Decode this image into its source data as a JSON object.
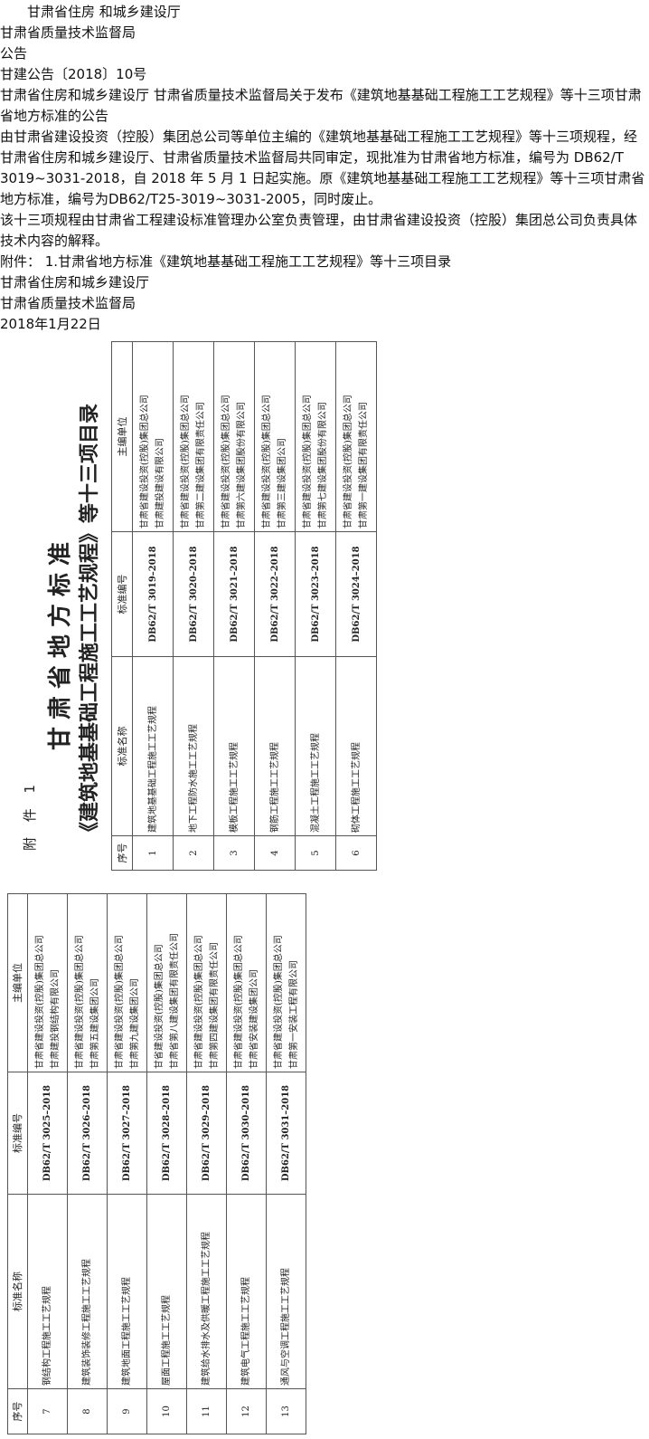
{
  "notice": {
    "issuer_line": "甘肃省住房 和城乡建设厅",
    "issuer2": "甘肃省质量技术监督局",
    "type": "公告",
    "doc_number": "甘建公告〔2018〕10号",
    "title": "甘肃省住房和城乡建设厅 甘肃省质量技术监督局关于发布《建筑地基基础工程施工工艺规程》等十三项甘肃省地方标准的公告",
    "para1": "由甘肃省建设投资（控股）集团总公司等单位主编的《建筑地基基础工程施工工艺规程》等十三项规程，经甘肃省住房和城乡建设厅、甘肃省质量技术监督局共同审定，现批准为甘肃省地方标准，编号为 DB62/T 3019~3031-2018，自 2018 年 5 月 1 日起实施。原《建筑地基基础工程施工工艺规程》等十三项甘肃省地方标准，编号为DB62/T25-3019~3031-2005，同时废止。",
    "para2": "该十三项规程由甘肃省工程建设标准管理办公室负责管理，由甘肃省建设投资（控股）集团总公司负责具体技术内容的解释。",
    "attachment": "附件： 1.甘肃省地方标准《建筑地基基础工程施工工艺规程》等十三项目录",
    "sign1": "甘肃省住房和城乡建设厅",
    "sign2": "甘肃省质量技术监督局",
    "date": "2018年1月22日"
  },
  "appendix": {
    "label": "附 件 1",
    "title_line1": "甘肃省地方标准",
    "title_line2": "《建筑地基基础工程施工工艺规程》等十三项目录",
    "headers": [
      "序号",
      "标准名称",
      "标准编号",
      "主编单位"
    ],
    "rows": [
      {
        "no": "1",
        "name": "建筑地基基础工程施工工艺规程",
        "code": "DB62/T 3019–2018",
        "unit1": "甘肃省建设投资(控股)集团总公司",
        "unit2": "甘肃建投建设有限公司"
      },
      {
        "no": "2",
        "name": "地下工程防水施工工艺规程",
        "code": "DB62/T 3020–2018",
        "unit1": "甘肃省建设投资(控股)集团总公司",
        "unit2": "甘肃第二建设集团有限责任公司"
      },
      {
        "no": "3",
        "name": "模板工程施工工艺规程",
        "code": "DB62/T 3021–2018",
        "unit1": "甘肃省建设投资(控股)集团总公司",
        "unit2": "甘肃第六建设集团股份有限公司"
      },
      {
        "no": "4",
        "name": "钢筋工程施工工艺规程",
        "code": "DB62/T 3022–2018",
        "unit1": "甘肃省建设投资(控股)集团总公司",
        "unit2": "甘肃第三建设集团公司"
      },
      {
        "no": "5",
        "name": "混凝土工程施工工艺规程",
        "code": "DB62/T 3023–2018",
        "unit1": "甘肃省建设投资(控股)集团总公司",
        "unit2": "甘肃第七建设集团股份有限公司"
      },
      {
        "no": "6",
        "name": "砌体工程施工工艺规程",
        "code": "DB62/T 3024–2018",
        "unit1": "甘肃省建设投资(控股)集团总公司",
        "unit2": "甘肃第一建设集团有限责任公司"
      },
      {
        "no": "7",
        "name": "钢结构工程施工工艺规程",
        "code": "DB62/T 3025–2018",
        "unit1": "甘肃省建设投资(控股)集团总公司",
        "unit2": "甘肃建投钢结构有限公司"
      },
      {
        "no": "8",
        "name": "建筑装饰装修工程施工工艺规程",
        "code": "DB62/T 3026–2018",
        "unit1": "甘肃省建设投资(控股)集团总公司",
        "unit2": "甘肃第五建设集团公司"
      },
      {
        "no": "9",
        "name": "建筑地面工程施工工艺规程",
        "code": "DB62/T 3027–2018",
        "unit1": "甘肃省建设投资(控股)集团总公司",
        "unit2": "甘肃第九建设集团公司"
      },
      {
        "no": "10",
        "name": "屋面工程施工工艺规程",
        "code": "DB62/T 3028–2018",
        "unit1": "甘省建设投资(控股)集团总公司",
        "unit2": "甘肃省第八建设集团有限责任公司"
      },
      {
        "no": "11",
        "name": "建筑给水排水及供暖工程施工工艺规程",
        "code": "DB62/T 3029–2018",
        "unit1": "甘肃省建设投资(控股)集团总公司",
        "unit2": "甘肃第四建设集团有限责任公司"
      },
      {
        "no": "12",
        "name": "建筑电气工程施工工艺规程",
        "code": "DB62/T 3030–2018",
        "unit1": "甘肃省建设投资(控股)集团总公司",
        "unit2": "甘肃省安装建设集团公司"
      },
      {
        "no": "13",
        "name": "通风与空调工程施工工艺规程",
        "code": "DB62/T 3031–2018",
        "unit1": "甘肃省建设投资(控股)集团总公司",
        "unit2": "甘肃第一安装工程有限公司"
      }
    ]
  }
}
